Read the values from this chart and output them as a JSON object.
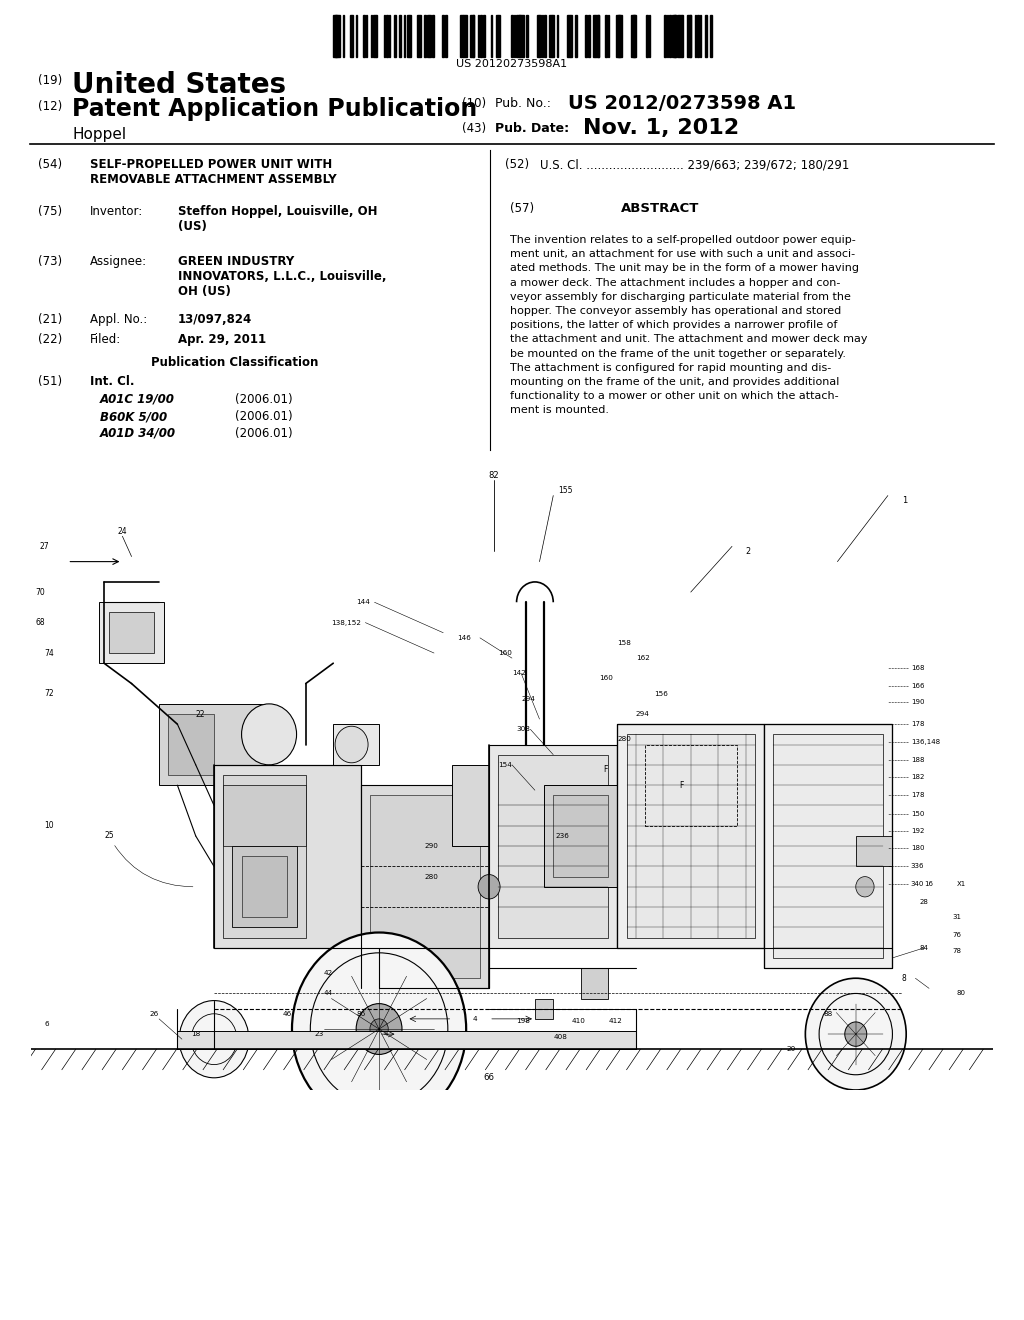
{
  "bg": "#ffffff",
  "barcode_text": "US 20120273598A1",
  "country": "United States",
  "pub_type": "Patent Application Publication",
  "inventor_last": "Hoppel",
  "pub_no_label": "(10)  Pub. No.:",
  "pub_no_value": "US 2012/0273598 A1",
  "pub_date_label": "(43)  Pub. Date:",
  "pub_date_value": "Nov. 1, 2012",
  "f54_line1": "SELF-PROPELLED POWER UNIT WITH",
  "f54_line2": "REMOVABLE ATTACHMENT ASSEMBLY",
  "f52_value": "U.S. Cl. .......................... 239/663; 239/672; 180/291",
  "inventor_value1": "Steffon Hoppel, Louisville, OH",
  "inventor_value2": "(US)",
  "abstract_title": "ABSTRACT",
  "abstract_lines": [
    "The invention relates to a self-propelled outdoor power equip-",
    "ment unit, an attachment for use with such a unit and associ-",
    "ated methods. The unit may be in the form of a mower having",
    "a mower deck. The attachment includes a hopper and con-",
    "veyor assembly for discharging particulate material from the",
    "hopper. The conveyor assembly has operational and stored",
    "positions, the latter of which provides a narrower profile of",
    "the attachment and unit. The attachment and mower deck may",
    "be mounted on the frame of the unit together or separately.",
    "The attachment is configured for rapid mounting and dis-",
    "mounting on the frame of the unit, and provides additional",
    "functionality to a mower or other unit on which the attach-",
    "ment is mounted."
  ],
  "assignee_line1": "GREEN INDUSTRY",
  "assignee_line2": "INNOVATORS, L.L.C., Louisville,",
  "assignee_line3": "OH (US)",
  "appl_no": "13/097,824",
  "filed": "Apr. 29, 2011",
  "pub_class_header": "Publication Classification",
  "int_cl_entries": [
    [
      "A01C 19/00",
      "(2006.01)"
    ],
    [
      "B60K 5/00",
      "(2006.01)"
    ],
    [
      "A01D 34/00",
      "(2006.01)"
    ]
  ]
}
